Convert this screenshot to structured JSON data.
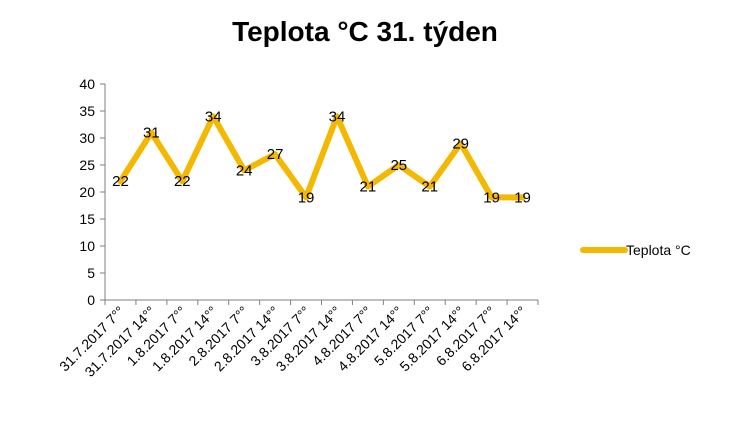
{
  "chart_data": {
    "type": "line",
    "title": "Teplota °C 31. týden",
    "xlabel": "",
    "ylabel": "",
    "ylim": [
      0,
      40
    ],
    "yticks": [
      0,
      5,
      10,
      15,
      20,
      25,
      30,
      35,
      40
    ],
    "categories": [
      "31.7.2017 7°°",
      "31.7.2017 14°°",
      "1.8.2017 7°°",
      "1.8.2017 14°°",
      "2.8.2017 7°°",
      "2.8.2017 14°°",
      "3.8.2017 7°°",
      "3.8.2017 14°°",
      "4.8.2017 7°°",
      "4.8.2017 14°°",
      "5.8.2017 7°°",
      "5.8.2017 14°°",
      "6.8.2017 7°°",
      "6.8.2017 14°°"
    ],
    "series": [
      {
        "name": "Teplota °C",
        "color": "#F5B800",
        "values": [
          22,
          31,
          22,
          34,
          24,
          27,
          19,
          34,
          21,
          25,
          21,
          29,
          19,
          19
        ]
      }
    ],
    "grid": false,
    "legend": "right"
  }
}
